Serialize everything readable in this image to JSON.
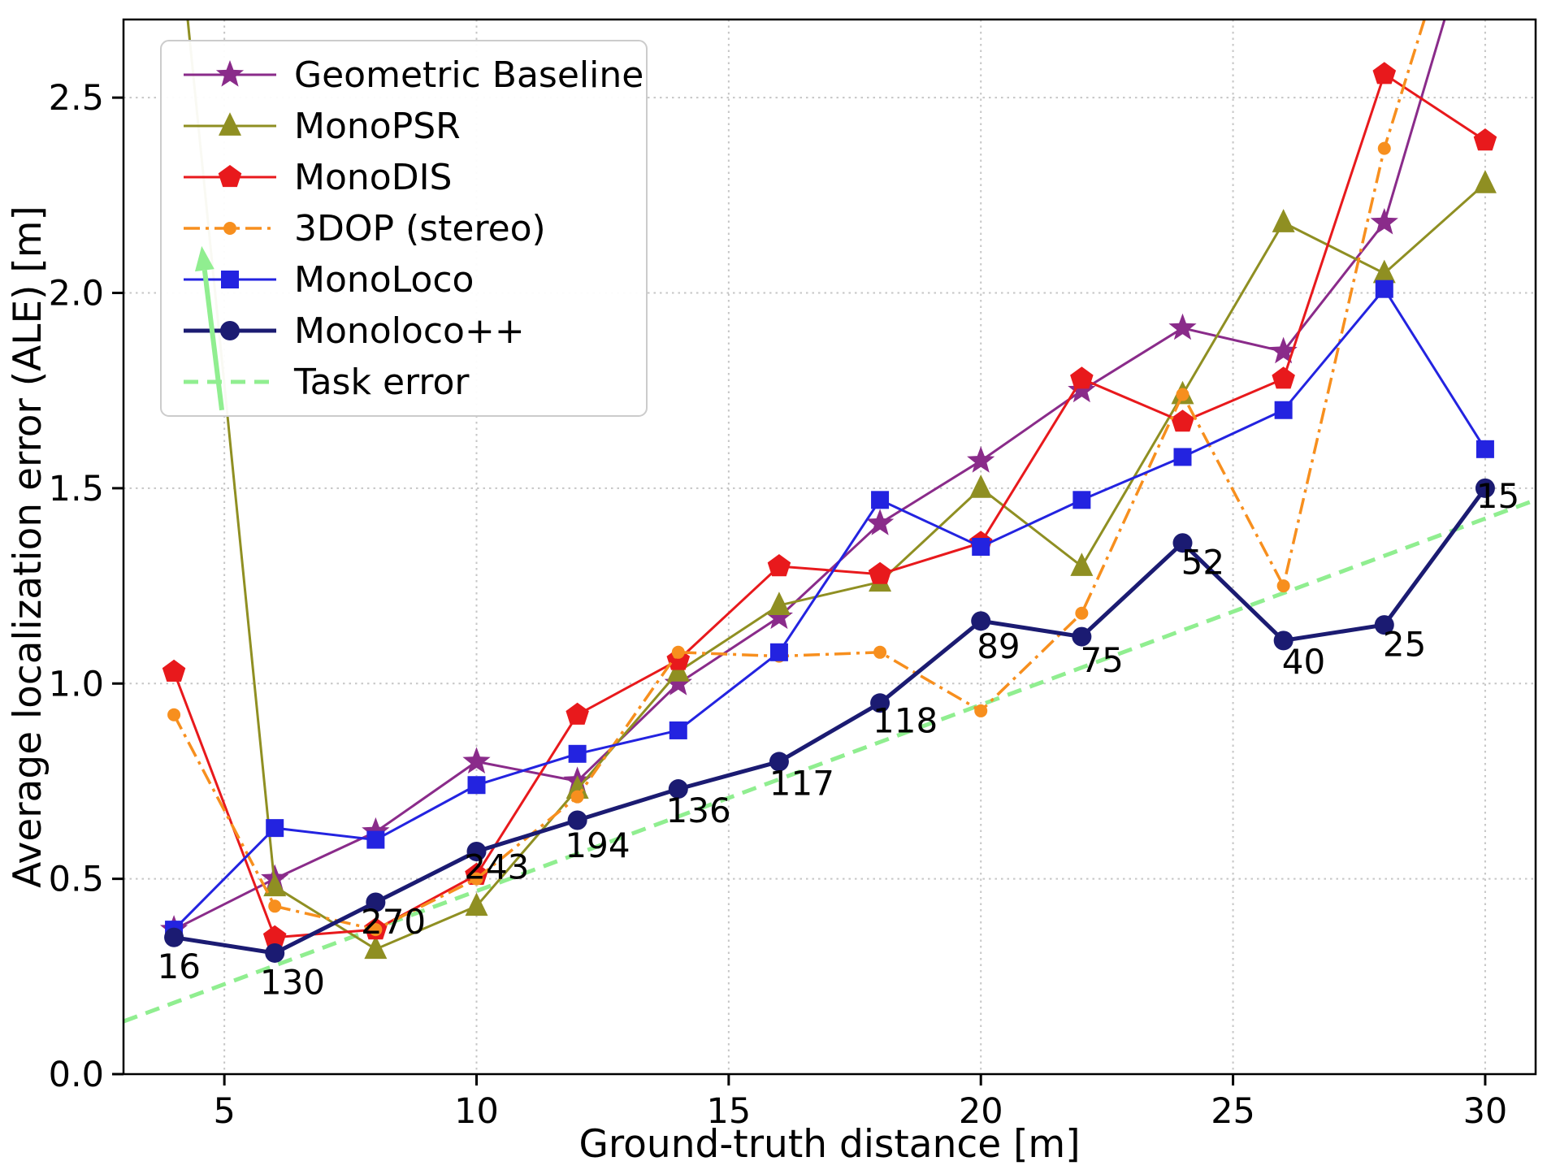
{
  "chart_data": {
    "type": "line",
    "title": "",
    "xlabel": "Ground-truth distance [m]",
    "ylabel": "Average localization error (ALE) [m]",
    "xlim": [
      3,
      31
    ],
    "ylim": [
      0,
      2.7
    ],
    "xticks": [
      5,
      10,
      15,
      20,
      25,
      30
    ],
    "yticks": [
      0.0,
      0.5,
      1.0,
      1.5,
      2.0,
      2.5
    ],
    "grid": true,
    "legend_position": "upper left",
    "x": [
      4,
      6,
      8,
      10,
      12,
      14,
      16,
      18,
      20,
      22,
      24,
      26,
      28,
      30
    ],
    "series": [
      {
        "name": "Geometric Baseline",
        "color": "#8a2b8a",
        "marker": "star",
        "linestyle": "solid",
        "linewidth": 3,
        "zorder": 2,
        "values": [
          0.37,
          0.5,
          0.62,
          0.8,
          0.75,
          1.0,
          1.17,
          1.41,
          1.57,
          1.75,
          1.91,
          1.85,
          2.18,
          3.05
        ]
      },
      {
        "name": "MonoPSR",
        "color": "#8f8f22",
        "marker": "triangle",
        "linestyle": "solid",
        "linewidth": 3,
        "zorder": 3,
        "values": [
          3.05,
          0.48,
          0.32,
          0.43,
          0.73,
          1.03,
          1.2,
          1.26,
          1.5,
          1.3,
          1.74,
          2.18,
          2.05,
          2.28
        ]
      },
      {
        "name": "MonoDIS",
        "color": "#e8191c",
        "marker": "pentagon",
        "linestyle": "solid",
        "linewidth": 3,
        "zorder": 4,
        "values": [
          1.03,
          0.35,
          0.37,
          0.51,
          0.92,
          1.06,
          1.3,
          1.28,
          1.36,
          1.78,
          1.67,
          1.78,
          2.56,
          2.39
        ]
      },
      {
        "name": "3DOP (stereo)",
        "color": "#f78f1e",
        "marker": "dot",
        "linestyle": "dashdot",
        "linewidth": 3.5,
        "zorder": 5,
        "values": [
          0.92,
          0.43,
          0.37,
          0.5,
          0.71,
          1.08,
          1.07,
          1.08,
          0.93,
          1.18,
          1.74,
          1.25,
          2.37,
          3.2
        ]
      },
      {
        "name": "MonoLoco",
        "color": "#2323e0",
        "marker": "square",
        "linestyle": "solid",
        "linewidth": 3,
        "zorder": 6,
        "values": [
          0.37,
          0.63,
          0.6,
          0.74,
          0.82,
          0.88,
          1.08,
          1.47,
          1.35,
          1.47,
          1.58,
          1.7,
          2.01,
          1.6
        ]
      },
      {
        "name": "Monoloco++",
        "color": "#1b1b72",
        "marker": "circle",
        "linestyle": "solid",
        "linewidth": 5,
        "zorder": 7,
        "values": [
          0.35,
          0.31,
          0.44,
          0.57,
          0.65,
          0.73,
          0.8,
          0.95,
          1.16,
          1.12,
          1.36,
          1.11,
          1.15,
          1.5
        ]
      },
      {
        "name": "Task error",
        "color": "#90ee90",
        "marker": "none",
        "linestyle": "dashed",
        "linewidth": 5,
        "zorder": 1,
        "x": [
          3,
          31
        ],
        "values": [
          0.135,
          1.47
        ]
      }
    ],
    "annotations": {
      "counts": [
        {
          "label": "16",
          "x": 4.1,
          "y": 0.245
        },
        {
          "label": "130",
          "x": 6.35,
          "y": 0.205
        },
        {
          "label": "270",
          "x": 8.35,
          "y": 0.36
        },
        {
          "label": "243",
          "x": 10.4,
          "y": 0.5
        },
        {
          "label": "194",
          "x": 12.4,
          "y": 0.555
        },
        {
          "label": "136",
          "x": 14.4,
          "y": 0.645
        },
        {
          "label": "117",
          "x": 16.45,
          "y": 0.715
        },
        {
          "label": "118",
          "x": 18.5,
          "y": 0.875
        },
        {
          "label": "89",
          "x": 20.35,
          "y": 1.065
        },
        {
          "label": "75",
          "x": 22.4,
          "y": 1.03
        },
        {
          "label": "52",
          "x": 24.4,
          "y": 1.28
        },
        {
          "label": "40",
          "x": 26.4,
          "y": 1.025
        },
        {
          "label": "25",
          "x": 28.4,
          "y": 1.07
        },
        {
          "label": "15",
          "x": 30.25,
          "y": 1.45
        }
      ],
      "offchart_arrow": {
        "from": {
          "x": 4.95,
          "y": 1.7
        },
        "to": {
          "x": 4.55,
          "y": 2.12
        },
        "color": "#90ee90"
      }
    },
    "colors": {
      "background": "#ffffff",
      "grid": "#c6c6c6",
      "spine": "#000000"
    }
  }
}
